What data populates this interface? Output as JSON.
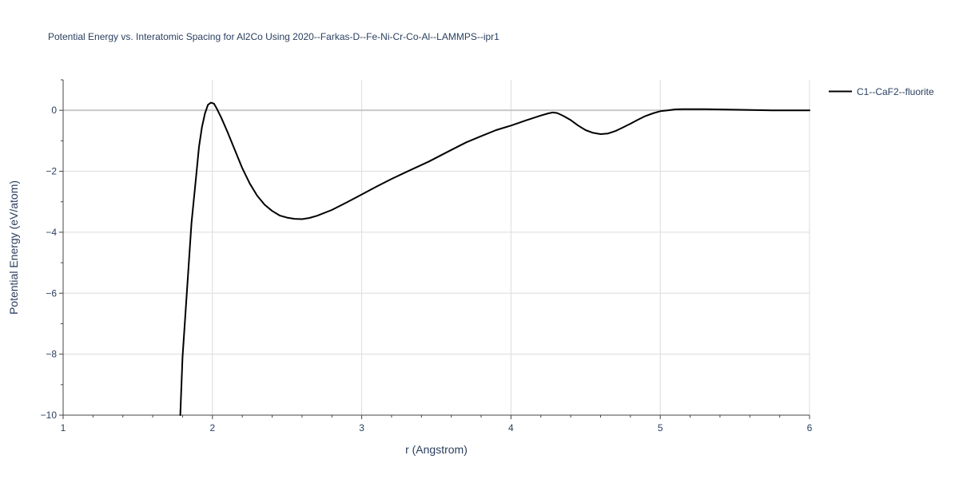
{
  "chart_data": {
    "type": "line",
    "title": "Potential Energy vs. Interatomic Spacing for Al2Co Using 2020--Farkas-D--Fe-Ni-Cr-Co-Al--LAMMPS--ipr1",
    "xlabel": "r (Angstrom)",
    "ylabel": "Potential Energy (eV/atom)",
    "xlim": [
      1,
      6
    ],
    "ylim": [
      -10,
      1
    ],
    "x_ticks": [
      1,
      2,
      3,
      4,
      5,
      6
    ],
    "x_tick_labels": [
      "1",
      "2",
      "3",
      "4",
      "5",
      "6"
    ],
    "y_ticks": [
      0,
      -2,
      -4,
      -6,
      -8,
      -10
    ],
    "y_tick_labels": [
      "0",
      "−2",
      "−4",
      "−6",
      "−8",
      "−10"
    ],
    "grid": true,
    "legend_position": "top-right",
    "series": [
      {
        "name": "C1--CaF2--fluorite",
        "color": "#000000",
        "x": [
          1.785,
          1.8,
          1.83,
          1.86,
          1.89,
          1.91,
          1.93,
          1.95,
          1.97,
          1.99,
          2.01,
          2.03,
          2.06,
          2.1,
          2.15,
          2.2,
          2.25,
          2.3,
          2.35,
          2.4,
          2.45,
          2.5,
          2.55,
          2.6,
          2.65,
          2.7,
          2.8,
          2.9,
          3.0,
          3.1,
          3.2,
          3.3,
          3.45,
          3.6,
          3.7,
          3.8,
          3.9,
          4.0,
          4.1,
          4.2,
          4.25,
          4.28,
          4.31,
          4.35,
          4.4,
          4.45,
          4.5,
          4.55,
          4.6,
          4.65,
          4.7,
          4.75,
          4.8,
          4.85,
          4.9,
          4.95,
          5.0,
          5.05,
          5.1,
          5.15,
          5.2,
          5.3,
          5.5,
          5.75,
          6.0
        ],
        "y": [
          -10.0,
          -8.1,
          -5.9,
          -3.7,
          -2.2,
          -1.2,
          -0.55,
          -0.1,
          0.18,
          0.25,
          0.22,
          0.05,
          -0.25,
          -0.7,
          -1.3,
          -1.9,
          -2.4,
          -2.8,
          -3.1,
          -3.3,
          -3.45,
          -3.52,
          -3.56,
          -3.57,
          -3.53,
          -3.46,
          -3.27,
          -3.02,
          -2.76,
          -2.5,
          -2.25,
          -2.02,
          -1.68,
          -1.3,
          -1.05,
          -0.85,
          -0.65,
          -0.5,
          -0.33,
          -0.17,
          -0.1,
          -0.07,
          -0.09,
          -0.18,
          -0.32,
          -0.5,
          -0.65,
          -0.74,
          -0.78,
          -0.76,
          -0.68,
          -0.56,
          -0.44,
          -0.31,
          -0.19,
          -0.1,
          -0.03,
          0.0,
          0.03,
          0.04,
          0.04,
          0.04,
          0.02,
          0.0,
          0.0
        ]
      }
    ]
  }
}
